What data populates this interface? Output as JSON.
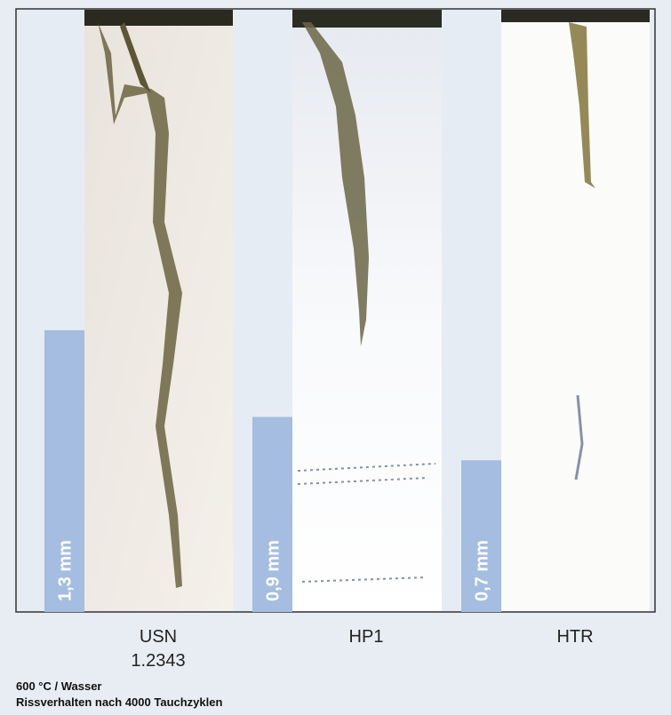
{
  "chart_data": {
    "type": "bar",
    "categories": [
      "USN\n1.2343",
      "HP1",
      "HTR"
    ],
    "values": [
      1.3,
      0.9,
      0.7
    ],
    "value_labels": [
      "1,3 mm",
      "0,9 mm",
      "0,7 mm"
    ],
    "color": "#a4bde0",
    "notes": [
      "600 °C / Wasser",
      "Rissverhalten nach 4000 Tauchzyklen"
    ]
  }
}
